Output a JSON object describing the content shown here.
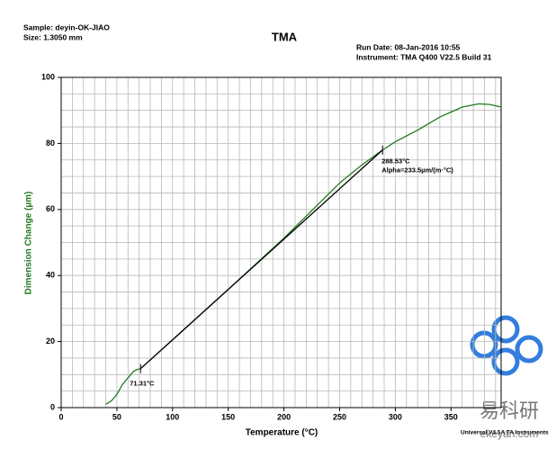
{
  "chart_data": {
    "type": "line",
    "title": "TMA",
    "sample": "Sample: deyin-OK-JIAO",
    "size": "Size: 1.3050 mm",
    "run_date": "Run Date: 08-Jan-2016 10:55",
    "instrument": "Instrument: TMA Q400 V22.5 Build 31",
    "y_label": "Dimension Change (µm)",
    "x_label": "Temperature (°C)",
    "footer": "Universal V4.5A TA Instruments",
    "watermark": {
      "name": "易科研",
      "site": "ekeyan.com"
    },
    "xlim": [
      0,
      395
    ],
    "ylim": [
      0,
      100
    ],
    "xticks": [
      0,
      50,
      100,
      150,
      200,
      250,
      300,
      350
    ],
    "yticks": [
      0,
      20,
      40,
      60,
      80,
      100
    ],
    "minor_grid": {
      "x": 10,
      "y": 5
    },
    "grid": true,
    "series": [
      {
        "color": "#1f7a1f",
        "x": [
          40,
          45,
          50,
          55,
          60,
          65,
          68,
          71.31,
          100,
          150,
          200,
          250,
          270,
          288.53,
          300,
          320,
          340,
          360,
          375,
          385,
          395
        ],
        "values": [
          1,
          2,
          4,
          7,
          9,
          11,
          11.5,
          11.8,
          20.5,
          35.8,
          51.3,
          68,
          73.5,
          78,
          80.5,
          84,
          88,
          91,
          92,
          91.8,
          91
        ]
      },
      {
        "color": "#000000",
        "x": [
          71.31,
          288.53
        ],
        "values": [
          11.8,
          78
        ]
      }
    ],
    "annotations": [
      {
        "lines": [
          "71.31°C"
        ],
        "x": 71.31,
        "y": 11.8
      },
      {
        "lines": [
          "288.53°C",
          "Alpha=233.5µm/(m·°C)"
        ],
        "x": 288.53,
        "y": 78
      }
    ]
  }
}
